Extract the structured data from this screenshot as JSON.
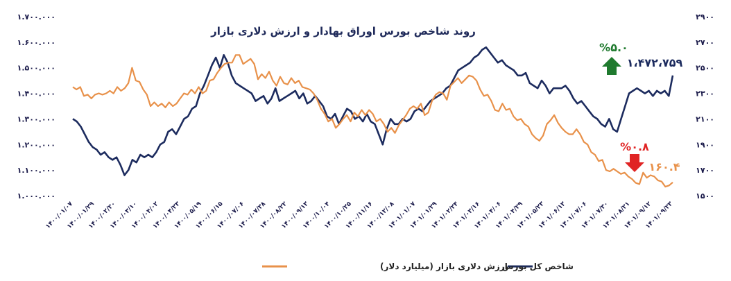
{
  "colors": {
    "index": "#1c2b5e",
    "dollar": "#e8914a",
    "up": "#1f7a2e",
    "down": "#e02424",
    "text": "#1a1a4a"
  },
  "chart_data": {
    "type": "line",
    "title": "روند شاخص بورس اوراق بهادار و ارزش دلاری بازار",
    "left_axis": {
      "ticks": [
        "۱.۷۰۰.۰۰۰",
        "۱.۶۰۰.۰۰۰",
        "۱.۵۰۰.۰۰۰",
        "۱.۴۰۰.۰۰۰",
        "۱.۳۰۰.۰۰۰",
        "۱.۲۰۰.۰۰۰",
        "۱.۱۰۰.۰۰۰",
        "۱.۰۰۰.۰۰۰"
      ],
      "ylim": [
        1000000,
        1700000
      ]
    },
    "right_axis": {
      "ticks": [
        "۲۹۰۰",
        "۲۷۰۰",
        "۲۵۰۰",
        "۲۳۰۰",
        "۲۱۰۰",
        "۱۹۰۰",
        "۱۷۰۰",
        "۱۵۰۰"
      ],
      "ylim": [
        1500,
        2900
      ]
    },
    "x_ticks": [
      "۱۴۰۰/۰۱/۰۷",
      "۱۴۰۰/۰۱/۲۹",
      "۱۴۰۰/۰۲/۲۰",
      "۱۴۰۰/۰۳/۱۰",
      "۱۴۰۰/۰۴/۰۲",
      "۱۴۰۰/۰۴/۲۳",
      "۱۴۰۰/۰۵/۱۹",
      "۱۴۰۰/۰۶/۱۵",
      "۱۴۰۰/۰۷/۰۶",
      "۱۴۰۰/۰۷/۲۸",
      "۱۴۰۰/۰۸/۲۲",
      "۱۴۰۰/۰۹/۱۳",
      "۱۴۰۰/۱۰/۰۴",
      "۱۴۰۰/۱۰/۲۵",
      "۱۴۰۰/۱۱/۱۶",
      "۱۴۰۰/۱۲/۰۸",
      "۱۴۰۱/۰۱/۰۷",
      "۱۴۰۱/۰۱/۲۹",
      "۱۴۰۱/۰۲/۲۴",
      "۱۴۰۱/۰۳/۱۶",
      "۱۴۰۱/۰۴/۰۶",
      "۱۴۰۱/۰۴/۲۹",
      "۱۴۰۱/۰۵/۲۳",
      "۱۴۰۱/۰۶/۱۳",
      "۱۴۰۱/۰۷/۰۶",
      "۱۴۰۱/۰۷/۳۰",
      "۱۴۰۱/۰۸/۲۱",
      "۱۴۰۱/۰۹/۱۲",
      "۱۴۰۱/۰۹/۲۳"
    ],
    "series": [
      {
        "name": "شاخص کل بورس",
        "axis": "left",
        "values": [
          1300000,
          1290000,
          1270000,
          1240000,
          1210000,
          1190000,
          1180000,
          1160000,
          1170000,
          1150000,
          1140000,
          1150000,
          1120000,
          1080000,
          1100000,
          1140000,
          1130000,
          1160000,
          1150000,
          1160000,
          1150000,
          1170000,
          1200000,
          1210000,
          1250000,
          1260000,
          1240000,
          1270000,
          1300000,
          1310000,
          1340000,
          1350000,
          1400000,
          1430000,
          1470000,
          1510000,
          1540000,
          1500000,
          1550000,
          1520000,
          1470000,
          1440000,
          1430000,
          1420000,
          1410000,
          1400000,
          1370000,
          1380000,
          1390000,
          1360000,
          1380000,
          1420000,
          1370000,
          1380000,
          1390000,
          1400000,
          1410000,
          1380000,
          1400000,
          1360000,
          1370000,
          1390000,
          1370000,
          1350000,
          1310000,
          1300000,
          1320000,
          1280000,
          1310000,
          1340000,
          1330000,
          1300000,
          1310000,
          1290000,
          1320000,
          1290000,
          1280000,
          1240000,
          1200000,
          1260000,
          1300000,
          1280000,
          1280000,
          1300000,
          1290000,
          1300000,
          1330000,
          1340000,
          1330000,
          1350000,
          1370000,
          1380000,
          1390000,
          1400000,
          1420000,
          1430000,
          1460000,
          1490000,
          1500000,
          1510000,
          1520000,
          1540000,
          1550000,
          1570000,
          1580000,
          1560000,
          1540000,
          1520000,
          1530000,
          1510000,
          1500000,
          1490000,
          1470000,
          1470000,
          1480000,
          1440000,
          1430000,
          1420000,
          1450000,
          1430000,
          1400000,
          1420000,
          1420000,
          1420000,
          1430000,
          1410000,
          1380000,
          1360000,
          1370000,
          1350000,
          1330000,
          1310000,
          1300000,
          1280000,
          1270000,
          1300000,
          1260000,
          1250000,
          1300000,
          1350000,
          1400000,
          1410000,
          1420000,
          1410000,
          1400000,
          1410000,
          1390000,
          1410000,
          1400000,
          1410000,
          1390000,
          1470000
        ]
      },
      {
        "name": "ارزش دلاری بازار (میلیارد دلار)",
        "axis": "right",
        "values": [
          2350,
          2330,
          2350,
          2280,
          2290,
          2260,
          2290,
          2300,
          2290,
          2300,
          2320,
          2300,
          2350,
          2320,
          2340,
          2380,
          2500,
          2400,
          2390,
          2330,
          2290,
          2200,
          2230,
          2200,
          2220,
          2190,
          2230,
          2200,
          2220,
          2260,
          2300,
          2290,
          2330,
          2300,
          2350,
          2300,
          2320,
          2400,
          2410,
          2460,
          2500,
          2530,
          2540,
          2540,
          2600,
          2600,
          2530,
          2550,
          2570,
          2530,
          2410,
          2450,
          2420,
          2470,
          2400,
          2360,
          2430,
          2380,
          2370,
          2420,
          2380,
          2400,
          2350,
          2340,
          2330,
          2300,
          2250,
          2180,
          2140,
          2080,
          2100,
          2030,
          2060,
          2100,
          2130,
          2080,
          2150,
          2120,
          2170,
          2130,
          2170,
          2140,
          2080,
          2100,
          2060,
          2000,
          2030,
          1990,
          2050,
          2090,
          2130,
          2180,
          2200,
          2180,
          2220,
          2130,
          2150,
          2240,
          2290,
          2310,
          2300,
          2250,
          2360,
          2390,
          2420,
          2380,
          2410,
          2440,
          2430,
          2400,
          2330,
          2280,
          2290,
          2240,
          2170,
          2160,
          2220,
          2170,
          2180,
          2120,
          2090,
          2100,
          2060,
          2040,
          1980,
          1950,
          1930,
          1970,
          2060,
          2090,
          2130,
          2070,
          2030,
          2000,
          1980,
          1980,
          2020,
          1980,
          1920,
          1900,
          1840,
          1820,
          1770,
          1780,
          1700,
          1690,
          1710,
          1690,
          1670,
          1680,
          1650,
          1630,
          1600,
          1590,
          1680,
          1640,
          1660,
          1650,
          1620,
          1610,
          1570,
          1580,
          1604
        ]
      }
    ],
    "annotations": {
      "index_change": "%۵.۰",
      "index_value": "۱،۴۷۲،۷۵۹",
      "dollar_change": "%۰.۸",
      "dollar_value": "۱۶۰.۴"
    },
    "legend": [
      {
        "label": "شاخص کل بورس",
        "series": 0
      },
      {
        "label": "ارزش دلاری بازار (میلیارد دلار)",
        "series": 1
      }
    ]
  }
}
